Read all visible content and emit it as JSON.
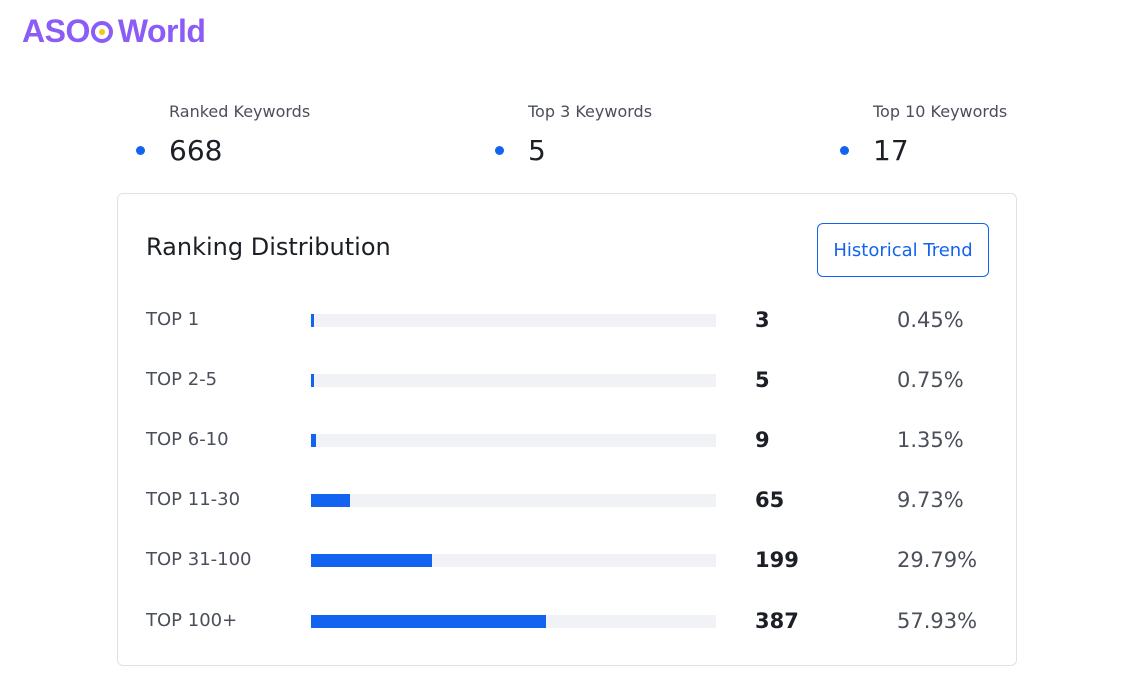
{
  "logo": {
    "left": "ASO",
    "right": "World"
  },
  "stats": [
    {
      "label": "Ranked Keywords",
      "value": "668"
    },
    {
      "label": "Top 3 Keywords",
      "value": "5"
    },
    {
      "label": "Top 10 Keywords",
      "value": "17"
    }
  ],
  "distribution": {
    "title": "Ranking Distribution",
    "trend_button_label": "Historical Trend",
    "rows": [
      {
        "label": "TOP 1",
        "count": "3",
        "percent": "0.45%",
        "share": 0.0045
      },
      {
        "label": "TOP 2-5",
        "count": "5",
        "percent": "0.75%",
        "share": 0.0075
      },
      {
        "label": "TOP 6-10",
        "count": "9",
        "percent": "1.35%",
        "share": 0.0135
      },
      {
        "label": "TOP 11-30",
        "count": "65",
        "percent": "9.73%",
        "share": 0.0973
      },
      {
        "label": "TOP 31-100",
        "count": "199",
        "percent": "29.79%",
        "share": 0.2979
      },
      {
        "label": "TOP 100+",
        "count": "387",
        "percent": "57.93%",
        "share": 0.5793
      }
    ]
  },
  "colors": {
    "brand": "#8b5cf6",
    "accent": "#1264f0",
    "track": "#f1f2f6",
    "logo_dot": "#f5c518"
  }
}
